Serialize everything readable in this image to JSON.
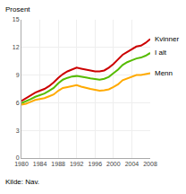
{
  "chart_data": {
    "type": "line",
    "ylabel": "Prosent",
    "annotations": [
      "Kilde: Nav."
    ],
    "x": [
      1980,
      1981,
      1982,
      1983,
      1984,
      1985,
      1986,
      1987,
      1988,
      1989,
      1990,
      1991,
      1992,
      1993,
      1994,
      1995,
      1996,
      1997,
      1998,
      1999,
      2000,
      2001,
      2002,
      2003,
      2004,
      2005,
      2006,
      2007,
      2008
    ],
    "series": [
      {
        "name": "Kvinner",
        "color": "#cc0000",
        "values": [
          6.2,
          6.5,
          6.8,
          7.1,
          7.3,
          7.5,
          7.8,
          8.2,
          8.7,
          9.1,
          9.4,
          9.6,
          9.8,
          9.7,
          9.6,
          9.5,
          9.4,
          9.4,
          9.5,
          9.8,
          10.2,
          10.7,
          11.2,
          11.5,
          11.8,
          12.1,
          12.2,
          12.5,
          12.9
        ]
      },
      {
        "name": "I alt",
        "color": "#55bb00",
        "values": [
          5.95,
          6.15,
          6.4,
          6.65,
          6.85,
          7.0,
          7.3,
          7.6,
          8.1,
          8.5,
          8.7,
          8.85,
          8.9,
          8.85,
          8.75,
          8.65,
          8.55,
          8.5,
          8.6,
          8.8,
          9.2,
          9.6,
          10.1,
          10.4,
          10.6,
          10.8,
          10.9,
          11.1,
          11.4
        ]
      },
      {
        "name": "Menn",
        "color": "#ffaa00",
        "values": [
          5.8,
          5.9,
          6.1,
          6.3,
          6.4,
          6.5,
          6.7,
          6.9,
          7.3,
          7.6,
          7.7,
          7.8,
          7.9,
          7.75,
          7.6,
          7.5,
          7.4,
          7.3,
          7.35,
          7.45,
          7.7,
          8.0,
          8.45,
          8.65,
          8.8,
          9.0,
          9.0,
          9.1,
          9.2
        ]
      }
    ],
    "xlim": [
      1980,
      2008
    ],
    "xticks": [
      1980,
      1984,
      1988,
      1992,
      1996,
      2000,
      2004,
      2008
    ],
    "ylim": [
      0,
      15
    ],
    "yticks": [
      0,
      3,
      6,
      9,
      12,
      15
    ],
    "grid": true
  }
}
